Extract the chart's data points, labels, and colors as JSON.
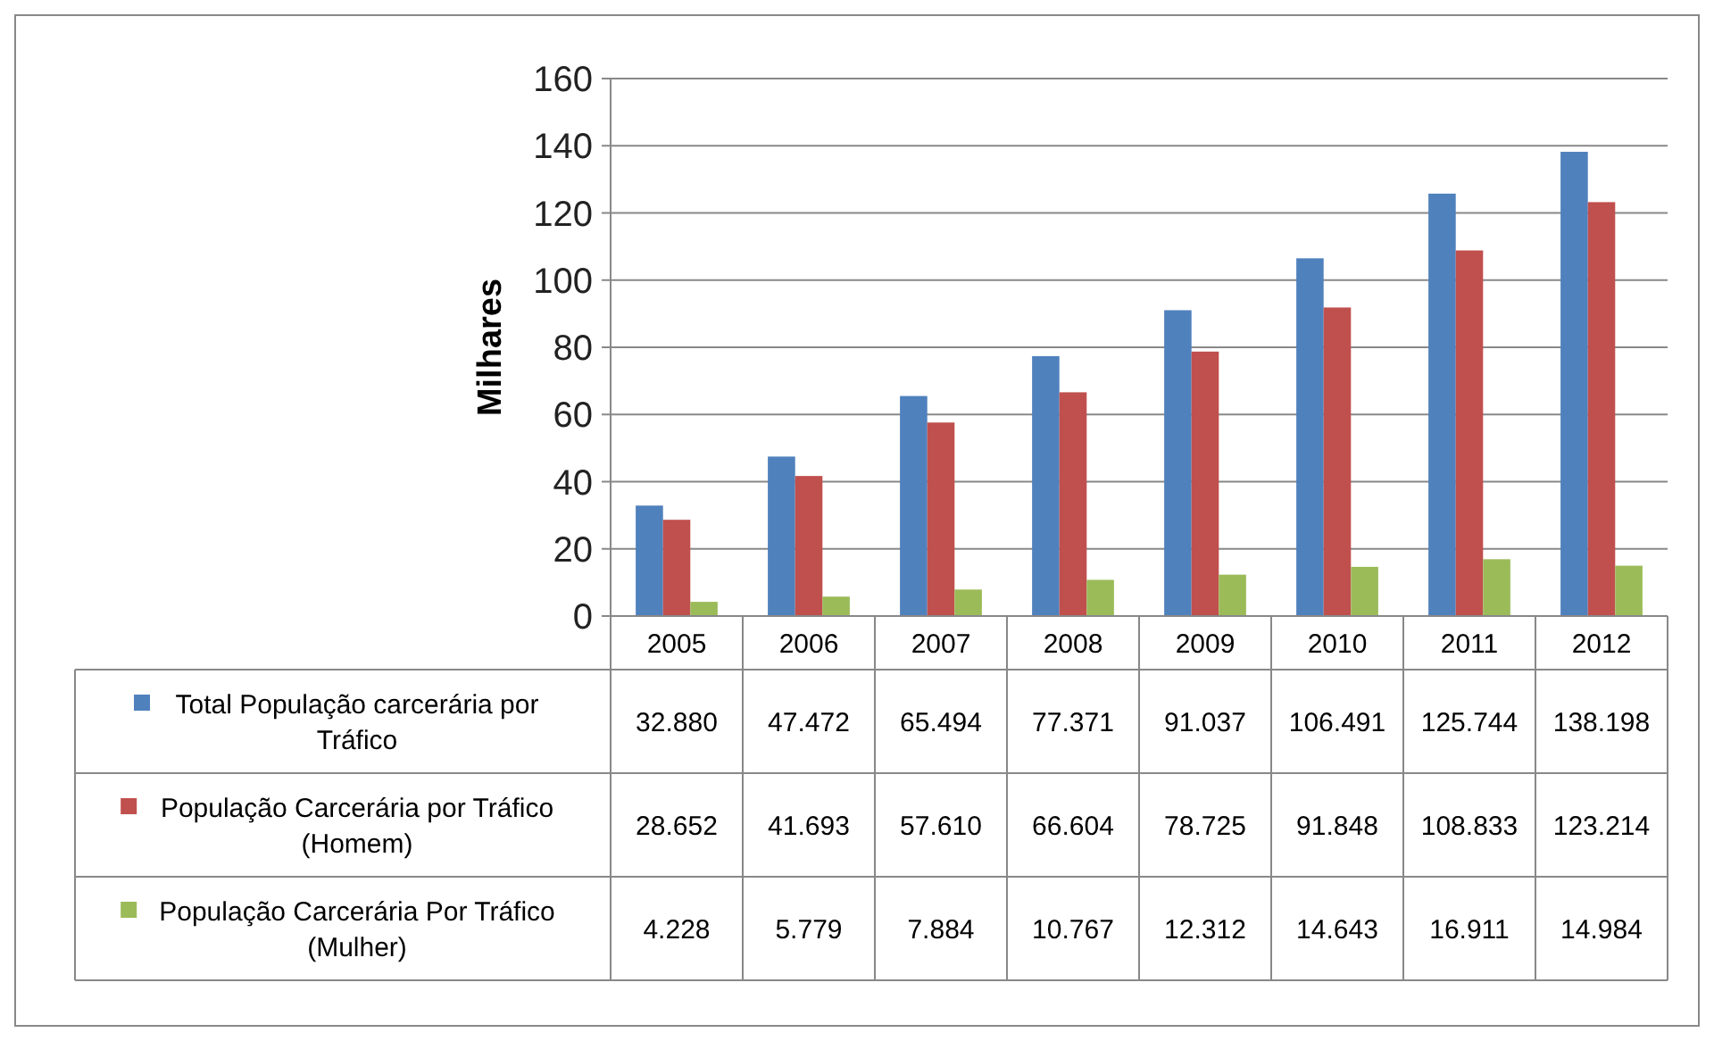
{
  "chart_data": {
    "type": "bar",
    "ylabel": "Milhares",
    "categories": [
      "2005",
      "2006",
      "2007",
      "2008",
      "2009",
      "2010",
      "2011",
      "2012"
    ],
    "series": [
      {
        "name": "Total População carcerária por Tráfico",
        "color": "#4f81bd",
        "values": [
          32.88,
          47.472,
          65.494,
          77.371,
          91.037,
          106.491,
          125.744,
          138.198
        ],
        "value_labels": [
          "32.880",
          "47.472",
          "65.494",
          "77.371",
          "91.037",
          "106.491",
          "125.744",
          "138.198"
        ]
      },
      {
        "name": " População Carcerária por Tráfico (Homem)",
        "color": "#c0504d",
        "values": [
          28.652,
          41.693,
          57.61,
          66.604,
          78.725,
          91.848,
          108.833,
          123.214
        ],
        "value_labels": [
          "28.652",
          "41.693",
          "57.610",
          "66.604",
          "78.725",
          "91.848",
          "108.833",
          "123.214"
        ]
      },
      {
        "name": "População Carcerária Por Tráfico (Mulher)",
        "color": "#9bbb59",
        "values": [
          4.228,
          5.779,
          7.884,
          10.767,
          12.312,
          14.643,
          16.911,
          14.984
        ],
        "value_labels": [
          "4.228",
          "5.779",
          "7.884",
          "10.767",
          "12.312",
          "14.643",
          "16.911",
          "14.984"
        ]
      }
    ],
    "ylim": [
      0,
      160
    ],
    "yticks": [
      0,
      20,
      40,
      60,
      80,
      100,
      120,
      140,
      160
    ],
    "grid": "y",
    "legend": "bottom"
  }
}
